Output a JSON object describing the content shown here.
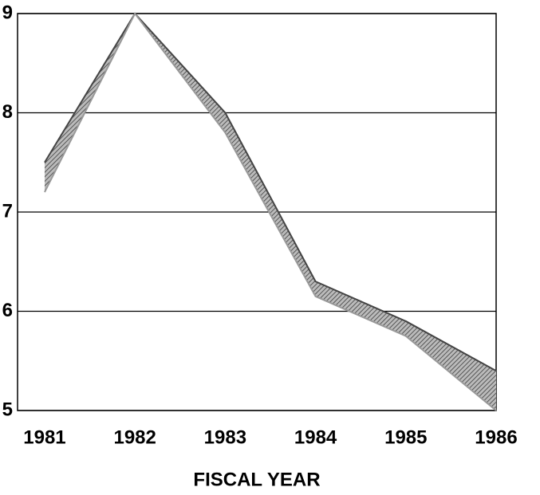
{
  "chart_data": {
    "type": "band",
    "x_label": "FISCAL YEAR",
    "x": [
      1981,
      1982,
      1983,
      1984,
      1985,
      1986
    ],
    "xlim": [
      1980.7,
      1986
    ],
    "xticks": [
      1981,
      1982,
      1983,
      1984,
      1985,
      1986
    ],
    "series": [
      {
        "color": "#444444",
        "values": [
          7.5,
          9.0,
          8.0,
          6.3,
          5.9,
          5.4
        ]
      },
      {
        "color": "#999999",
        "values": [
          7.2,
          9.0,
          7.8,
          6.15,
          5.75,
          5.0
        ]
      }
    ],
    "ylim": [
      5,
      9
    ],
    "yticks": [
      5,
      6,
      7,
      8,
      9
    ],
    "grid": true
  }
}
